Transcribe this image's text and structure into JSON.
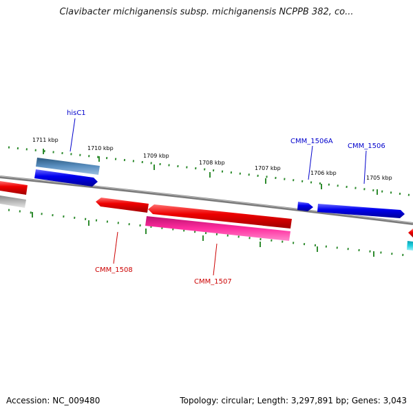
{
  "title": "Clavibacter michiganensis subsp. michiganensis NCPPB 382, co...",
  "footer": {
    "accession_label": "Accession:",
    "accession": "NC_009480",
    "topology": "circular",
    "length": "3,297,891 bp",
    "genes": "3,043"
  },
  "colors": {
    "backbone": "#808080",
    "tick": "#2e8b2e",
    "forward_gene": "#0000ee",
    "reverse_gene": "#ee0000",
    "rna": "#e0188c",
    "pseudo": "#4a7fb0",
    "label_forward": "#0000cc",
    "label_reverse": "#cc0000",
    "cyan_gene": "#18c8d8",
    "grey_gene": "#b0b0b0"
  },
  "scale": {
    "ticks": [
      "1711 kbp",
      "1710 kbp",
      "1709 kbp",
      "1708 kbp",
      "1707 kbp",
      "1706 kbp",
      "1705 kbp"
    ]
  },
  "gene_labels": [
    {
      "name": "hisC1",
      "strand": "forward"
    },
    {
      "name": "CMM_1506A",
      "strand": "forward"
    },
    {
      "name": "CMM_1506",
      "strand": "forward"
    },
    {
      "name": "CMM_1508",
      "strand": "reverse"
    },
    {
      "name": "CMM_1507",
      "strand": "reverse"
    }
  ]
}
